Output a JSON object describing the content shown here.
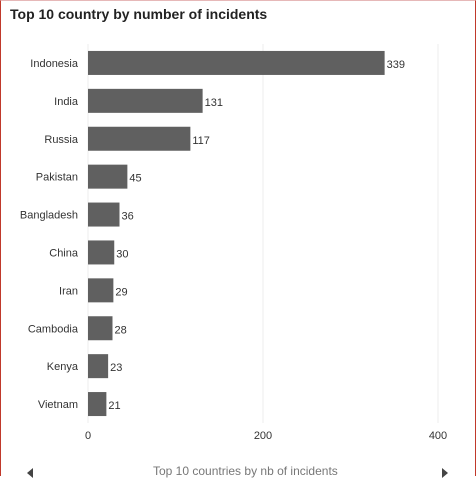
{
  "title": "Top 10 country by number of incidents",
  "footer": {
    "label": "Top 10 countries by nb of incidents",
    "prev_icon": "chevron-left-icon",
    "next_icon": "chevron-right-icon"
  },
  "colors": {
    "bar": "#606060",
    "grid": "#ececec",
    "frame": "#c0392b"
  },
  "chart_data": {
    "type": "bar",
    "orientation": "horizontal",
    "title": "Top 10 country by number of incidents",
    "xlabel": "",
    "ylabel": "",
    "categories": [
      "Indonesia",
      "India",
      "Russia",
      "Pakistan",
      "Bangladesh",
      "China",
      "Iran",
      "Cambodia",
      "Kenya",
      "Vietnam"
    ],
    "values": [
      339,
      131,
      117,
      45,
      36,
      30,
      29,
      28,
      23,
      21
    ],
    "xlim": [
      0,
      400
    ],
    "xticks": [
      0,
      200,
      400
    ],
    "grid": true,
    "data_labels": true
  }
}
